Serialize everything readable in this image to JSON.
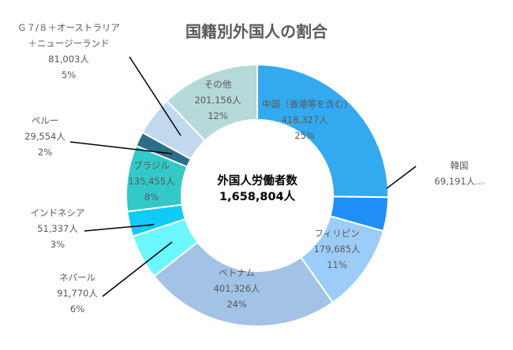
{
  "chart_data": {
    "type": "pie",
    "variant": "donut",
    "title": "国籍別外国人の割合",
    "center_label": {
      "line1": "外国人労働者数",
      "line2": "1,658,804人"
    },
    "slices": [
      {
        "name": "中国（香港等を含む)",
        "value": 418327,
        "value_label": "418,327人",
        "percent_label": "25%",
        "color": "#33aaf0"
      },
      {
        "name": "韓国",
        "value": 69191,
        "value_label": "69,191人…",
        "percent_label": "",
        "color": "#1f8ef6"
      },
      {
        "name": "フィリピン",
        "value": 179685,
        "value_label": "179,685人",
        "percent_label": "11%",
        "color": "#9ccdf8"
      },
      {
        "name": "ベトナム",
        "value": 401326,
        "value_label": "401,326人",
        "percent_label": "24%",
        "color": "#a2c2e6"
      },
      {
        "name": "ネパール",
        "value": 91770,
        "value_label": "91,770人",
        "percent_label": "6%",
        "color": "#6bf7ff"
      },
      {
        "name": "インドネシア",
        "value": 51337,
        "value_label": "51,337人",
        "percent_label": "3%",
        "color": "#0fcbf5"
      },
      {
        "name": "ブラジル",
        "value": 135455,
        "value_label": "135,455人",
        "percent_label": "8%",
        "color": "#32c9c8"
      },
      {
        "name": "ペルー",
        "value": 29554,
        "value_label": "29,554人",
        "percent_label": "2%",
        "color": "#2c6f8a"
      },
      {
        "name": "Ｇ７/８＋オーストラリア\n＋ニュージーランド",
        "value": 81003,
        "value_label": "81,003人",
        "percent_label": "5%",
        "color": "#c1d8ee"
      },
      {
        "name": "その他",
        "value": 201156,
        "value_label": "201,156人",
        "percent_label": "12%",
        "color": "#b5d9d8"
      }
    ]
  }
}
